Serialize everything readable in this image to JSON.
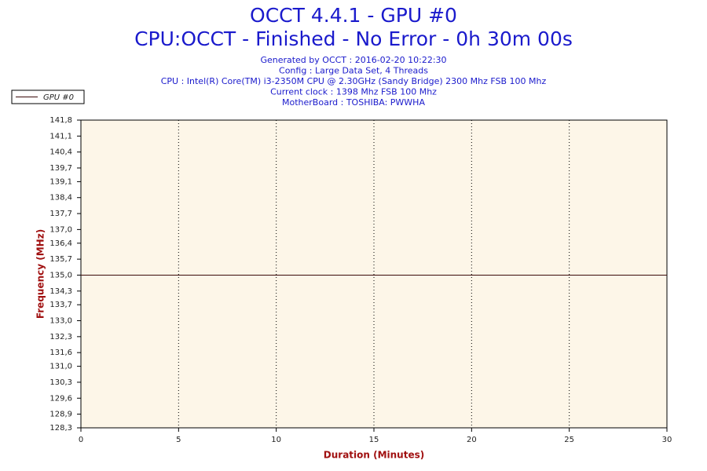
{
  "chart_data": {
    "type": "line",
    "title": "OCCT 4.4.1 - GPU #0",
    "subtitle": "CPU:OCCT - Finished - No Error - 0h 30m 00s",
    "info_lines": [
      "Generated by OCCT : 2016-02-20 10:22:30",
      "Config : Large Data Set, 4 Threads",
      "CPU : Intel(R) Core(TM) i3-2350M CPU @ 2.30GHz (Sandy Bridge) 2300 Mhz FSB 100 Mhz",
      "Current clock : 1398 Mhz FSB 100 Mhz",
      "MotherBoard : TOSHIBA: PWWHA"
    ],
    "x_label": "Duration (Minutes)",
    "y_label": "Frequency (MHz)",
    "x": [
      0,
      30
    ],
    "series": [
      {
        "name": "GPU #0",
        "color": "#3a0a0a",
        "values": [
          135,
          135
        ]
      }
    ],
    "xlim": [
      0,
      30
    ],
    "xticks": [
      0,
      5,
      10,
      15,
      20,
      25,
      30
    ],
    "ylim": [
      128.3,
      141.8
    ],
    "yticks": [
      {
        "value": 128.3,
        "label": "128,3"
      },
      {
        "value": 128.9,
        "label": "128,9"
      },
      {
        "value": 129.6,
        "label": "129,6"
      },
      {
        "value": 130.3,
        "label": "130,3"
      },
      {
        "value": 131.0,
        "label": "131,0"
      },
      {
        "value": 131.6,
        "label": "131,6"
      },
      {
        "value": 132.3,
        "label": "132,3"
      },
      {
        "value": 133.0,
        "label": "133,0"
      },
      {
        "value": 133.7,
        "label": "133,7"
      },
      {
        "value": 134.3,
        "label": "134,3"
      },
      {
        "value": 135.0,
        "label": "135,0"
      },
      {
        "value": 135.7,
        "label": "135,7"
      },
      {
        "value": 136.4,
        "label": "136,4"
      },
      {
        "value": 137.0,
        "label": "137,0"
      },
      {
        "value": 137.7,
        "label": "137,7"
      },
      {
        "value": 138.4,
        "label": "138,4"
      },
      {
        "value": 139.1,
        "label": "139,1"
      },
      {
        "value": 139.7,
        "label": "139,7"
      },
      {
        "value": 140.4,
        "label": "140,4"
      },
      {
        "value": 141.1,
        "label": "141,1"
      },
      {
        "value": 141.8,
        "label": "141,8"
      }
    ],
    "grid": true,
    "legend": "top-left",
    "plot_background": "#fdf6e8"
  }
}
